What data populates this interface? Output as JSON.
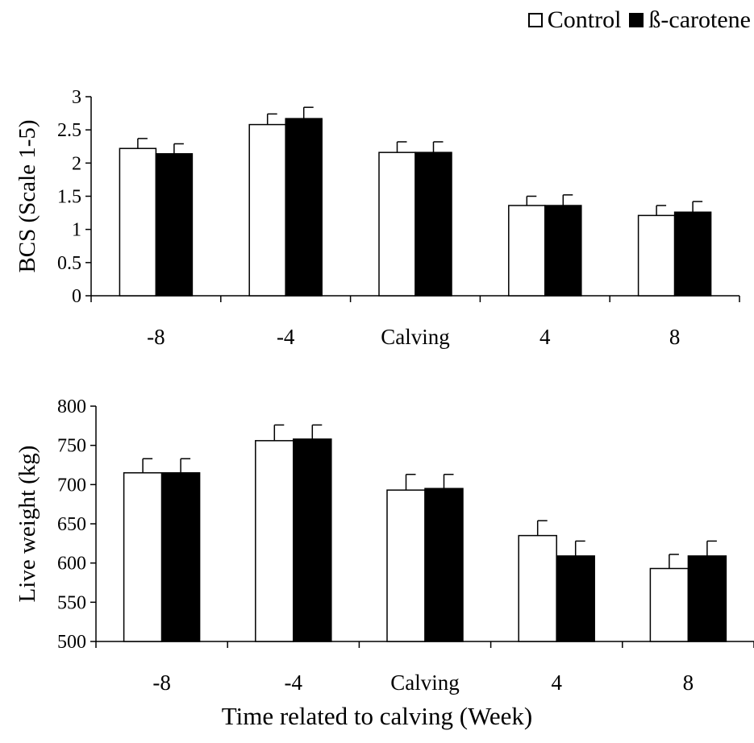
{
  "legend": {
    "control_label": "Control",
    "beta_label": "ß-carotene",
    "control_color": "#ffffff",
    "beta_color": "#000000"
  },
  "xaxis_title": "Time related to calving (Week)",
  "chart_data": [
    {
      "type": "bar",
      "ylabel": "BCS (Scale 1-5)",
      "ylim": [
        0,
        3
      ],
      "yticks": [
        0,
        0.5,
        1,
        1.5,
        2,
        2.5,
        3
      ],
      "categories": [
        "-8",
        "-4",
        "Calving",
        "4",
        "8"
      ],
      "series": [
        {
          "name": "Control",
          "color": "#ffffff",
          "values": [
            2.22,
            2.58,
            2.16,
            1.36,
            1.21
          ],
          "errors": [
            0.15,
            0.16,
            0.16,
            0.14,
            0.15
          ]
        },
        {
          "name": "ß-carotene",
          "color": "#000000",
          "values": [
            2.14,
            2.67,
            2.16,
            1.36,
            1.26
          ],
          "errors": [
            0.15,
            0.17,
            0.16,
            0.16,
            0.16
          ]
        }
      ]
    },
    {
      "type": "bar",
      "ylabel": "Live weight (kg)",
      "ylim": [
        500,
        800
      ],
      "yticks": [
        500,
        550,
        600,
        650,
        700,
        750,
        800
      ],
      "categories": [
        "-8",
        "-4",
        "Calving",
        "4",
        "8"
      ],
      "series": [
        {
          "name": "Control",
          "color": "#ffffff",
          "values": [
            715,
            756,
            693,
            635,
            593
          ],
          "errors": [
            18,
            20,
            20,
            19,
            18
          ]
        },
        {
          "name": "ß-carotene",
          "color": "#000000",
          "values": [
            715,
            758,
            695,
            609,
            609
          ],
          "errors": [
            18,
            18,
            18,
            19,
            19
          ]
        }
      ]
    }
  ]
}
